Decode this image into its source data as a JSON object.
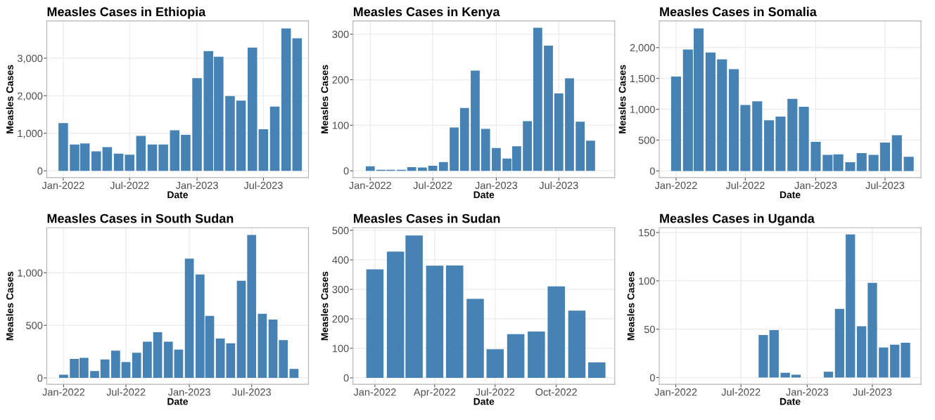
{
  "chart_data": [
    {
      "type": "bar",
      "title": "Measles Cases in Ethiopia",
      "xlabel": "Date",
      "ylabel": "Measles Cases",
      "grid": true,
      "x": [
        "2022-01",
        "2022-02",
        "2022-03",
        "2022-04",
        "2022-05",
        "2022-06",
        "2022-07",
        "2022-08",
        "2022-09",
        "2022-10",
        "2022-11",
        "2022-12",
        "2023-01",
        "2023-02",
        "2023-03",
        "2023-04",
        "2023-05",
        "2023-06",
        "2023-07",
        "2023-08",
        "2023-09",
        "2023-10"
      ],
      "series": [
        {
          "color": "#4682b4",
          "values": [
            1270,
            700,
            730,
            520,
            630,
            460,
            430,
            930,
            700,
            700,
            1080,
            960,
            2470,
            3190,
            3040,
            1990,
            1870,
            3280,
            1110,
            1710,
            3790,
            3530
          ]
        }
      ],
      "xlim": [
        "2021-11-17",
        "2023-11-01"
      ],
      "ylim": [
        -180,
        3990
      ],
      "xticks": [
        {
          "value": "2022-01",
          "label": "Jan-2022"
        },
        {
          "value": "2022-07",
          "label": "Jul-2022"
        },
        {
          "value": "2023-01",
          "label": "Jan-2023"
        },
        {
          "value": "2023-07",
          "label": "Jul-2023"
        }
      ],
      "yticks": [
        0,
        {
          "value": 1000,
          "label": "1,000"
        },
        {
          "value": 2000,
          "label": "2,000"
        },
        {
          "value": 3000,
          "label": "3,000"
        }
      ]
    },
    {
      "type": "bar",
      "title": "Measles Cases in Kenya",
      "xlabel": "Date",
      "ylabel": "Measles Cases",
      "grid": true,
      "x": [
        "2022-01",
        "2022-02",
        "2022-03",
        "2022-04",
        "2022-05",
        "2022-06",
        "2022-07",
        "2022-08",
        "2022-09",
        "2022-10",
        "2022-11",
        "2022-12",
        "2023-01",
        "2023-02",
        "2023-03",
        "2023-04",
        "2023-05",
        "2023-06",
        "2023-07",
        "2023-08",
        "2023-09",
        "2023-10"
      ],
      "series": [
        {
          "color": "#4682b4",
          "values": [
            10,
            2,
            2,
            2,
            8,
            7,
            11,
            19,
            95,
            138,
            220,
            92,
            50,
            27,
            54,
            109,
            314,
            275,
            170,
            203,
            108,
            66
          ]
        }
      ],
      "xlim": [
        "2021-11-12",
        "2023-12-10"
      ],
      "ylim": [
        -15,
        329
      ],
      "xticks": [
        {
          "value": "2022-01",
          "label": "Jan-2022"
        },
        {
          "value": "2022-07",
          "label": "Jul-2022"
        },
        {
          "value": "2023-01",
          "label": "Jan-2023"
        },
        {
          "value": "2023-07",
          "label": "Jul-2023"
        }
      ],
      "yticks": [
        0,
        100,
        200,
        300
      ]
    },
    {
      "type": "bar",
      "title": "Measles Cases in Somalia",
      "xlabel": "Date",
      "ylabel": "Measles Cases",
      "grid": true,
      "x": [
        "2022-01",
        "2022-02",
        "2022-03",
        "2022-04",
        "2022-05",
        "2022-06",
        "2022-07",
        "2022-08",
        "2022-09",
        "2022-10",
        "2022-11",
        "2022-12",
        "2023-01",
        "2023-02",
        "2023-03",
        "2023-04",
        "2023-05",
        "2023-06",
        "2023-07",
        "2023-08",
        "2023-09"
      ],
      "series": [
        {
          "color": "#4682b4",
          "values": [
            1530,
            1970,
            2310,
            1920,
            1810,
            1650,
            1070,
            1130,
            820,
            880,
            1170,
            1040,
            470,
            260,
            270,
            140,
            290,
            260,
            460,
            580,
            230
          ]
        }
      ],
      "xlim": [
        "2021-11-18",
        "2023-10-03"
      ],
      "ylim": [
        -108,
        2431
      ],
      "xticks": [
        {
          "value": "2022-01",
          "label": "Jan-2022"
        },
        {
          "value": "2022-07",
          "label": "Jul-2022"
        },
        {
          "value": "2023-01",
          "label": "Jan-2023"
        },
        {
          "value": "2023-07",
          "label": "Jul-2023"
        }
      ],
      "yticks": [
        0,
        500,
        {
          "value": 1000,
          "label": "1,000"
        },
        {
          "value": 1500,
          "label": "1,500"
        },
        {
          "value": 2000,
          "label": "2,000"
        }
      ]
    },
    {
      "type": "bar",
      "title": "Measles Cases in South Sudan",
      "xlabel": "Date",
      "ylabel": "Measles Cases",
      "grid": true,
      "x": [
        "2022-01",
        "2022-02",
        "2022-03",
        "2022-04",
        "2022-05",
        "2022-06",
        "2022-07",
        "2022-08",
        "2022-09",
        "2022-10",
        "2022-11",
        "2022-12",
        "2023-01",
        "2023-02",
        "2023-03",
        "2023-04",
        "2023-05",
        "2023-06",
        "2023-07",
        "2023-08",
        "2023-09",
        "2023-10",
        "2023-11"
      ],
      "series": [
        {
          "color": "#4682b4",
          "values": [
            30,
            180,
            190,
            65,
            175,
            260,
            150,
            240,
            345,
            435,
            345,
            270,
            1135,
            985,
            590,
            375,
            330,
            925,
            1360,
            610,
            555,
            360,
            85
          ]
        }
      ],
      "xlim": [
        "2021-11-13",
        "2023-12-13"
      ],
      "ylim": [
        -61,
        1429
      ],
      "xticks": [
        {
          "value": "2022-01",
          "label": "Jan-2022"
        },
        {
          "value": "2022-07",
          "label": "Jul-2022"
        },
        {
          "value": "2023-01",
          "label": "Jan-2023"
        },
        {
          "value": "2023-07",
          "label": "Jul-2023"
        }
      ],
      "yticks": [
        0,
        500,
        {
          "value": 1000,
          "label": "1,000"
        }
      ]
    },
    {
      "type": "bar",
      "title": "Measles Cases in Sudan",
      "xlabel": "Date",
      "ylabel": "Measles Cases",
      "grid": true,
      "x": [
        "2022-01",
        "2022-02",
        "2022-03",
        "2022-04",
        "2022-05",
        "2022-06",
        "2022-07",
        "2022-08",
        "2022-09",
        "2022-10",
        "2022-11",
        "2022-12"
      ],
      "series": [
        {
          "color": "#4682b4",
          "values": [
            368,
            428,
            483,
            380,
            381,
            268,
            97,
            148,
            157,
            310,
            228,
            52
          ]
        }
      ],
      "xlim": [
        "2021-11-29",
        "2022-12-28"
      ],
      "ylim": [
        -22,
        509
      ],
      "xticks": [
        {
          "value": "2022-01",
          "label": "Jan-2022"
        },
        {
          "value": "2022-04",
          "label": "Apr-2022"
        },
        {
          "value": "2022-07",
          "label": "Jul-2022"
        },
        {
          "value": "2022-10",
          "label": "Oct-2022"
        }
      ],
      "yticks": [
        0,
        100,
        200,
        300,
        400,
        500
      ]
    },
    {
      "type": "bar",
      "title": "Measles Cases in Uganda",
      "xlabel": "Date",
      "ylabel": "Measles Cases",
      "grid": true,
      "x": [
        "2022-09",
        "2022-10",
        "2022-11",
        "2022-12",
        "2023-03",
        "2023-04",
        "2023-05",
        "2023-06",
        "2023-07",
        "2023-08",
        "2023-09",
        "2023-10"
      ],
      "series": [
        {
          "color": "#4682b4",
          "values": [
            44,
            49,
            5,
            3,
            6,
            71,
            148,
            53,
            98,
            31,
            34,
            36
          ]
        }
      ],
      "xlim": [
        "2021-11-16",
        "2023-11-13"
      ],
      "ylim": [
        -7,
        155
      ],
      "xticks": [
        {
          "value": "2022-01",
          "label": "Jan-2022"
        },
        {
          "value": "2022-07",
          "label": "Jul-2022"
        },
        {
          "value": "2023-01",
          "label": "Jan-2023"
        },
        {
          "value": "2023-07",
          "label": "Jul-2023"
        }
      ],
      "yticks": [
        0,
        50,
        100,
        150
      ]
    }
  ]
}
